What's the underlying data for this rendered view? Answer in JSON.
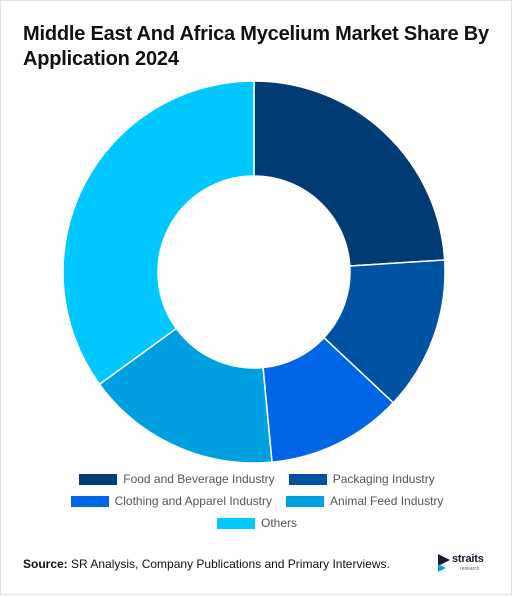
{
  "chart_data": {
    "type": "pie",
    "donut": true,
    "title": "Middle East And Africa Mycelium Market Share By Application 2024",
    "categories": [
      "Food and Beverage Industry",
      "Packaging Industry",
      "Clothing and Apparel Industry",
      "Animal Feed Industry",
      "Others"
    ],
    "values": [
      24,
      13,
      11.5,
      16.5,
      35
    ],
    "colors": [
      "#003b73",
      "#0052a3",
      "#0066e6",
      "#00a0e0",
      "#00c8ff"
    ],
    "legend_position": "bottom"
  },
  "legend": {
    "items": [
      {
        "label": "Food and Beverage Industry",
        "color": "#003b73"
      },
      {
        "label": "Packaging Industry",
        "color": "#0052a3"
      },
      {
        "label": "Clothing and Apparel Industry",
        "color": "#0066e6"
      },
      {
        "label": "Animal Feed Industry",
        "color": "#00a0e0"
      },
      {
        "label": "Others",
        "color": "#00c8ff"
      }
    ]
  },
  "footer": {
    "source_label": "Source:",
    "source_text": " SR Analysis, Company Publications and Primary Interviews."
  },
  "logo": {
    "brand": "straits",
    "sub": "research"
  }
}
